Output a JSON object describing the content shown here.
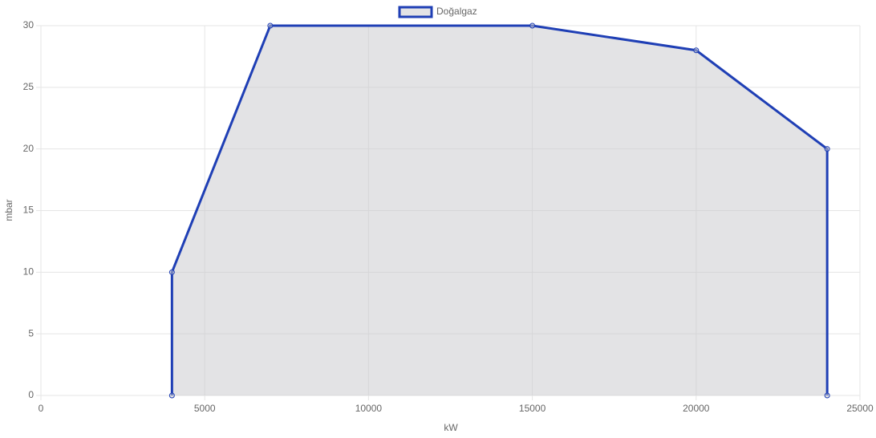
{
  "chart_data": {
    "type": "line",
    "x": [
      4000,
      4000,
      7000,
      15000,
      20000,
      24000,
      24000
    ],
    "series": [
      {
        "name": "Doğalgaz",
        "color": "#1f3fb5",
        "fill": "rgba(200,200,203,0.5)",
        "values": [
          0,
          10,
          30,
          30,
          28,
          20,
          0
        ]
      }
    ],
    "xlabel": "kW",
    "ylabel": "mbar",
    "xlim": [
      0,
      25000
    ],
    "xticks": [
      0,
      5000,
      10000,
      15000,
      20000,
      25000
    ],
    "ylim": [
      0,
      30
    ],
    "yticks": [
      0,
      5,
      10,
      15,
      20,
      25,
      30
    ],
    "grid": true,
    "legend": "top"
  }
}
